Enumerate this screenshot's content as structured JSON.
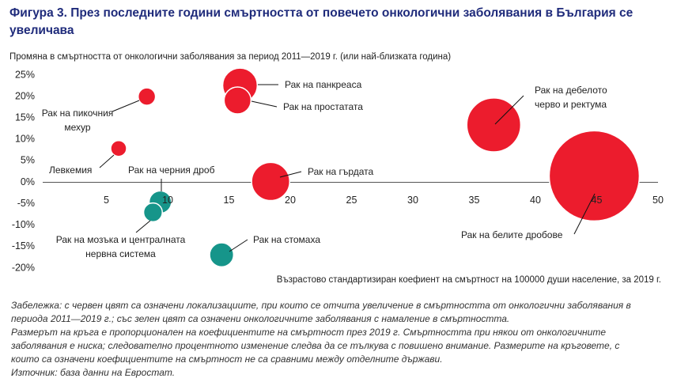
{
  "title": "Фигура 3. През последните години смъртността от повечето онкологични заболявания в България се увеличава",
  "chart_data": {
    "type": "bubble",
    "subtitle": "Промяна в смъртността от онкологични заболявания за период 2011—2019 г. (или най-близката година)",
    "x_label": "Възрастово стандартизиран коефиент на смъртност на 100000 души население, за 2019 г.",
    "xlim": [
      0,
      50
    ],
    "ylim": [
      -20,
      25
    ],
    "xticks": [
      5,
      10,
      15,
      20,
      25,
      30,
      35,
      40,
      45,
      50
    ],
    "yticks": [
      {
        "value": 25,
        "label": "25%"
      },
      {
        "value": 20,
        "label": "20%"
      },
      {
        "value": 15,
        "label": "15%"
      },
      {
        "value": 10,
        "label": "10%"
      },
      {
        "value": 5,
        "label": "5%"
      },
      {
        "value": 0,
        "label": "0%"
      },
      {
        "value": -5,
        "label": "-5%"
      },
      {
        "value": -10,
        "label": "-10%"
      },
      {
        "value": -15,
        "label": "-15%"
      },
      {
        "value": -20,
        "label": "-20%"
      }
    ],
    "grid": false,
    "points": [
      {
        "label": "Рак на панкреаса",
        "x": 15.9,
        "y": 22.6,
        "size": 48,
        "color": "#ec1c2d"
      },
      {
        "label": "Рак на простатата",
        "x": 15.7,
        "y": 19.1,
        "size": 29,
        "color": "#ec1c2d"
      },
      {
        "label": "Рак на пикочния мехур",
        "x": 8.3,
        "y": 20,
        "size": 12,
        "color": "#ec1c2d"
      },
      {
        "label": "Левкемия",
        "x": 6.0,
        "y": 7.9,
        "size": 10,
        "color": "#ec1c2d"
      },
      {
        "label": "Рак на дебелото черво и ректума",
        "x": 36.6,
        "y": 13.4,
        "size": 116,
        "color": "#ec1c2d"
      },
      {
        "label": "Рак на белите дробове",
        "x": 44.8,
        "y": 1.5,
        "size": 325,
        "color": "#ec1c2d"
      },
      {
        "label": "Рак на гърдата",
        "x": 18.4,
        "y": 0.2,
        "size": 58,
        "color": "#ec1c2d"
      },
      {
        "label": "Рак на черния дроб",
        "x": 9.4,
        "y": -4.6,
        "size": 20,
        "color": "#16958a"
      },
      {
        "label": "Рак на мозъка и централната нервна система",
        "x": 8.8,
        "y": -7.0,
        "size": 14,
        "color": "#16958a"
      },
      {
        "label": "Рак на стомаха",
        "x": 14.4,
        "y": -16.9,
        "size": 23,
        "color": "#16958a"
      }
    ]
  },
  "notes": [
    "Забележка: с червен цвят са означени локализациите, при които се отчита увеличение в смъртността от онкологични заболявания в периода 2011—2019 г.; със зелен цвят са означени онкологичните заболявания с намаление в смъртността.",
    "Размерът на кръга е пропорционален на коефициентите на смъртност през 2019 г. Смъртността при някои от онкологичните заболявания е ниска; следователно процентното изменение следва да се тълкува с повишено внимание. Размерите на кръговете, с които са означени коефициентите на смъртност не са сравними между отделните държави.",
    "Източник: база данни на Евростат."
  ]
}
